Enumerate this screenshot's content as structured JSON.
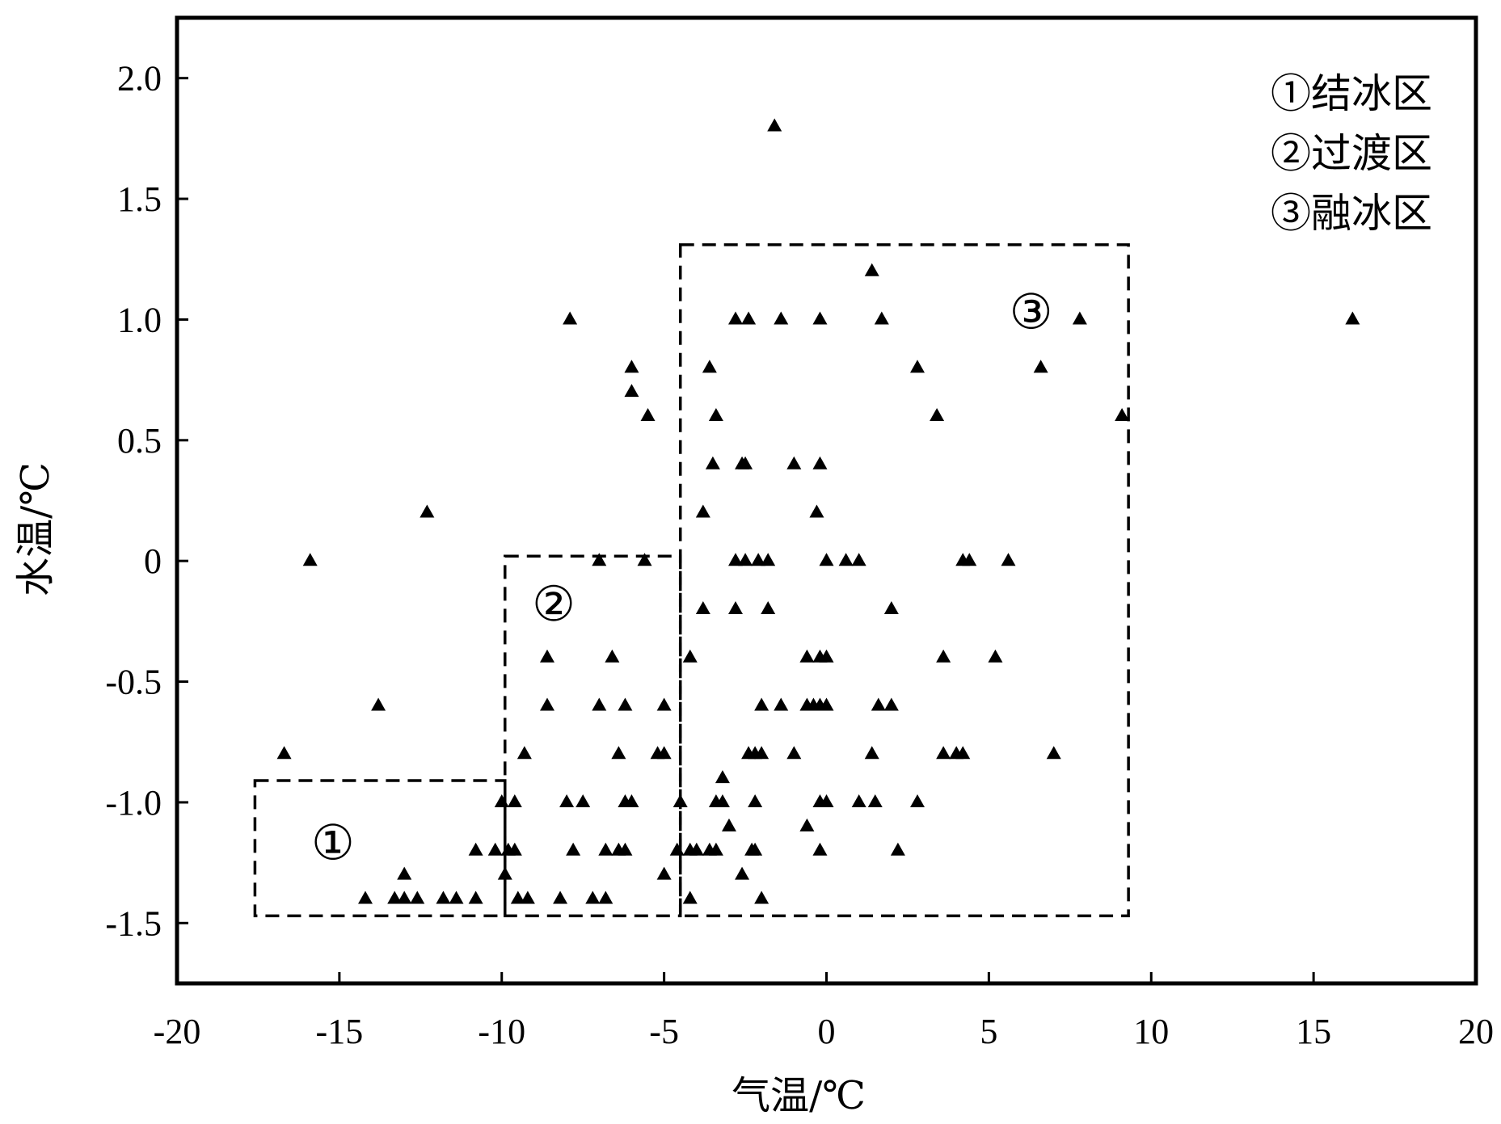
{
  "chart_data": {
    "type": "scatter",
    "xlabel": "气温/℃",
    "ylabel": "水温/℃",
    "xlim": [
      -20,
      20
    ],
    "ylim": [
      -1.75,
      2.25
    ],
    "xticks": [
      -20,
      -15,
      -10,
      -5,
      0,
      5,
      10,
      15,
      20
    ],
    "xtick_labels": [
      "-20",
      "-15",
      "-10",
      "-5",
      "0",
      "5",
      "10",
      "15",
      "20"
    ],
    "yticks": [
      2.0,
      1.5,
      1.0,
      0.5,
      0,
      -0.5,
      -1.0,
      -1.5
    ],
    "ytick_labels": [
      "2.0",
      "1.5",
      "1.0",
      "0.5",
      "0",
      "-0.5",
      "-1.0",
      "-1.5"
    ],
    "grid": false,
    "marker": "triangle",
    "marker_color": "#000000",
    "legend": {
      "placement": "top-right",
      "items": [
        "①结冰区",
        "②过渡区",
        "③融冰区"
      ]
    },
    "regions": [
      {
        "label": "①",
        "x_range": [
          -17.6,
          -9.9
        ],
        "y_range": [
          -1.47,
          -0.91
        ],
        "label_at": [
          -15.2,
          -1.17
        ]
      },
      {
        "label": "②",
        "x_range": [
          -9.9,
          -4.5
        ],
        "y_range": [
          -1.47,
          0.02
        ],
        "label_at": [
          -8.4,
          -0.18
        ]
      },
      {
        "label": "③",
        "x_range": [
          -4.5,
          9.3
        ],
        "y_range": [
          -1.47,
          1.31
        ],
        "label_at": [
          6.3,
          1.03
        ]
      }
    ],
    "points": [
      [
        -1.6,
        1.8
      ],
      [
        16.2,
        1.0
      ],
      [
        -12.3,
        0.2
      ],
      [
        -15.9,
        0.0
      ],
      [
        -13.8,
        -0.6
      ],
      [
        -16.7,
        -0.8
      ],
      [
        -7.9,
        1.0
      ],
      [
        -6.0,
        0.8
      ],
      [
        -6.0,
        0.7
      ],
      [
        -5.5,
        0.6
      ],
      [
        1.4,
        1.2
      ],
      [
        -2.8,
        1.0
      ],
      [
        -2.4,
        1.0
      ],
      [
        -1.4,
        1.0
      ],
      [
        -0.2,
        1.0
      ],
      [
        1.7,
        1.0
      ],
      [
        7.8,
        1.0
      ],
      [
        -3.6,
        0.8
      ],
      [
        2.8,
        0.8
      ],
      [
        6.6,
        0.8
      ],
      [
        -3.4,
        0.6
      ],
      [
        3.4,
        0.6
      ],
      [
        9.1,
        0.6
      ],
      [
        -3.5,
        0.4
      ],
      [
        -2.6,
        0.4
      ],
      [
        -2.5,
        0.4
      ],
      [
        -1.0,
        0.4
      ],
      [
        -0.2,
        0.4
      ],
      [
        -3.8,
        0.2
      ],
      [
        -0.3,
        0.2
      ],
      [
        -7.0,
        0.0
      ],
      [
        -5.6,
        0.0
      ],
      [
        -2.8,
        0.0
      ],
      [
        -2.5,
        0.0
      ],
      [
        -2.1,
        0.0
      ],
      [
        -1.8,
        0.0
      ],
      [
        0.0,
        0.0
      ],
      [
        0.6,
        0.0
      ],
      [
        1.0,
        0.0
      ],
      [
        4.2,
        0.0
      ],
      [
        4.4,
        0.0
      ],
      [
        5.6,
        0.0
      ],
      [
        -3.8,
        -0.2
      ],
      [
        -2.8,
        -0.2
      ],
      [
        -1.8,
        -0.2
      ],
      [
        2.0,
        -0.2
      ],
      [
        -8.6,
        -0.4
      ],
      [
        -6.6,
        -0.4
      ],
      [
        -4.2,
        -0.4
      ],
      [
        -0.6,
        -0.4
      ],
      [
        -0.2,
        -0.4
      ],
      [
        0.0,
        -0.4
      ],
      [
        3.6,
        -0.4
      ],
      [
        5.2,
        -0.4
      ],
      [
        -8.6,
        -0.6
      ],
      [
        -7.0,
        -0.6
      ],
      [
        -6.2,
        -0.6
      ],
      [
        -5.0,
        -0.6
      ],
      [
        -2.0,
        -0.6
      ],
      [
        -1.4,
        -0.6
      ],
      [
        -0.6,
        -0.6
      ],
      [
        -0.4,
        -0.6
      ],
      [
        -0.2,
        -0.6
      ],
      [
        0.0,
        -0.6
      ],
      [
        1.6,
        -0.6
      ],
      [
        2.0,
        -0.6
      ],
      [
        -9.3,
        -0.8
      ],
      [
        -6.4,
        -0.8
      ],
      [
        -5.2,
        -0.8
      ],
      [
        -5.0,
        -0.8
      ],
      [
        -2.4,
        -0.8
      ],
      [
        -2.2,
        -0.8
      ],
      [
        -2.0,
        -0.8
      ],
      [
        -1.0,
        -0.8
      ],
      [
        1.4,
        -0.8
      ],
      [
        3.6,
        -0.8
      ],
      [
        4.0,
        -0.8
      ],
      [
        4.2,
        -0.8
      ],
      [
        7.0,
        -0.8
      ],
      [
        -3.2,
        -0.9
      ],
      [
        -10.0,
        -1.0
      ],
      [
        -9.6,
        -1.0
      ],
      [
        -8.0,
        -1.0
      ],
      [
        -7.5,
        -1.0
      ],
      [
        -6.2,
        -1.0
      ],
      [
        -6.0,
        -1.0
      ],
      [
        -4.5,
        -1.0
      ],
      [
        -3.4,
        -1.0
      ],
      [
        -3.2,
        -1.0
      ],
      [
        -2.2,
        -1.0
      ],
      [
        -0.2,
        -1.0
      ],
      [
        0.0,
        -1.0
      ],
      [
        1.0,
        -1.0
      ],
      [
        1.5,
        -1.0
      ],
      [
        2.8,
        -1.0
      ],
      [
        -3.0,
        -1.1
      ],
      [
        -0.6,
        -1.1
      ],
      [
        -10.8,
        -1.2
      ],
      [
        -10.2,
        -1.2
      ],
      [
        -9.8,
        -1.2
      ],
      [
        -9.6,
        -1.2
      ],
      [
        -7.8,
        -1.2
      ],
      [
        -6.8,
        -1.2
      ],
      [
        -6.4,
        -1.2
      ],
      [
        -6.2,
        -1.2
      ],
      [
        -4.6,
        -1.2
      ],
      [
        -4.2,
        -1.2
      ],
      [
        -4.0,
        -1.2
      ],
      [
        -3.6,
        -1.2
      ],
      [
        -3.4,
        -1.2
      ],
      [
        -2.3,
        -1.2
      ],
      [
        -2.2,
        -1.2
      ],
      [
        -0.2,
        -1.2
      ],
      [
        2.2,
        -1.2
      ],
      [
        -13.0,
        -1.3
      ],
      [
        -9.9,
        -1.3
      ],
      [
        -5.0,
        -1.3
      ],
      [
        -2.6,
        -1.3
      ],
      [
        -14.2,
        -1.4
      ],
      [
        -13.3,
        -1.4
      ],
      [
        -13.0,
        -1.4
      ],
      [
        -12.6,
        -1.4
      ],
      [
        -11.8,
        -1.4
      ],
      [
        -11.4,
        -1.4
      ],
      [
        -10.8,
        -1.4
      ],
      [
        -9.5,
        -1.4
      ],
      [
        -9.2,
        -1.4
      ],
      [
        -8.2,
        -1.4
      ],
      [
        -7.2,
        -1.4
      ],
      [
        -6.8,
        -1.4
      ],
      [
        -4.2,
        -1.4
      ],
      [
        -2.0,
        -1.4
      ]
    ]
  }
}
